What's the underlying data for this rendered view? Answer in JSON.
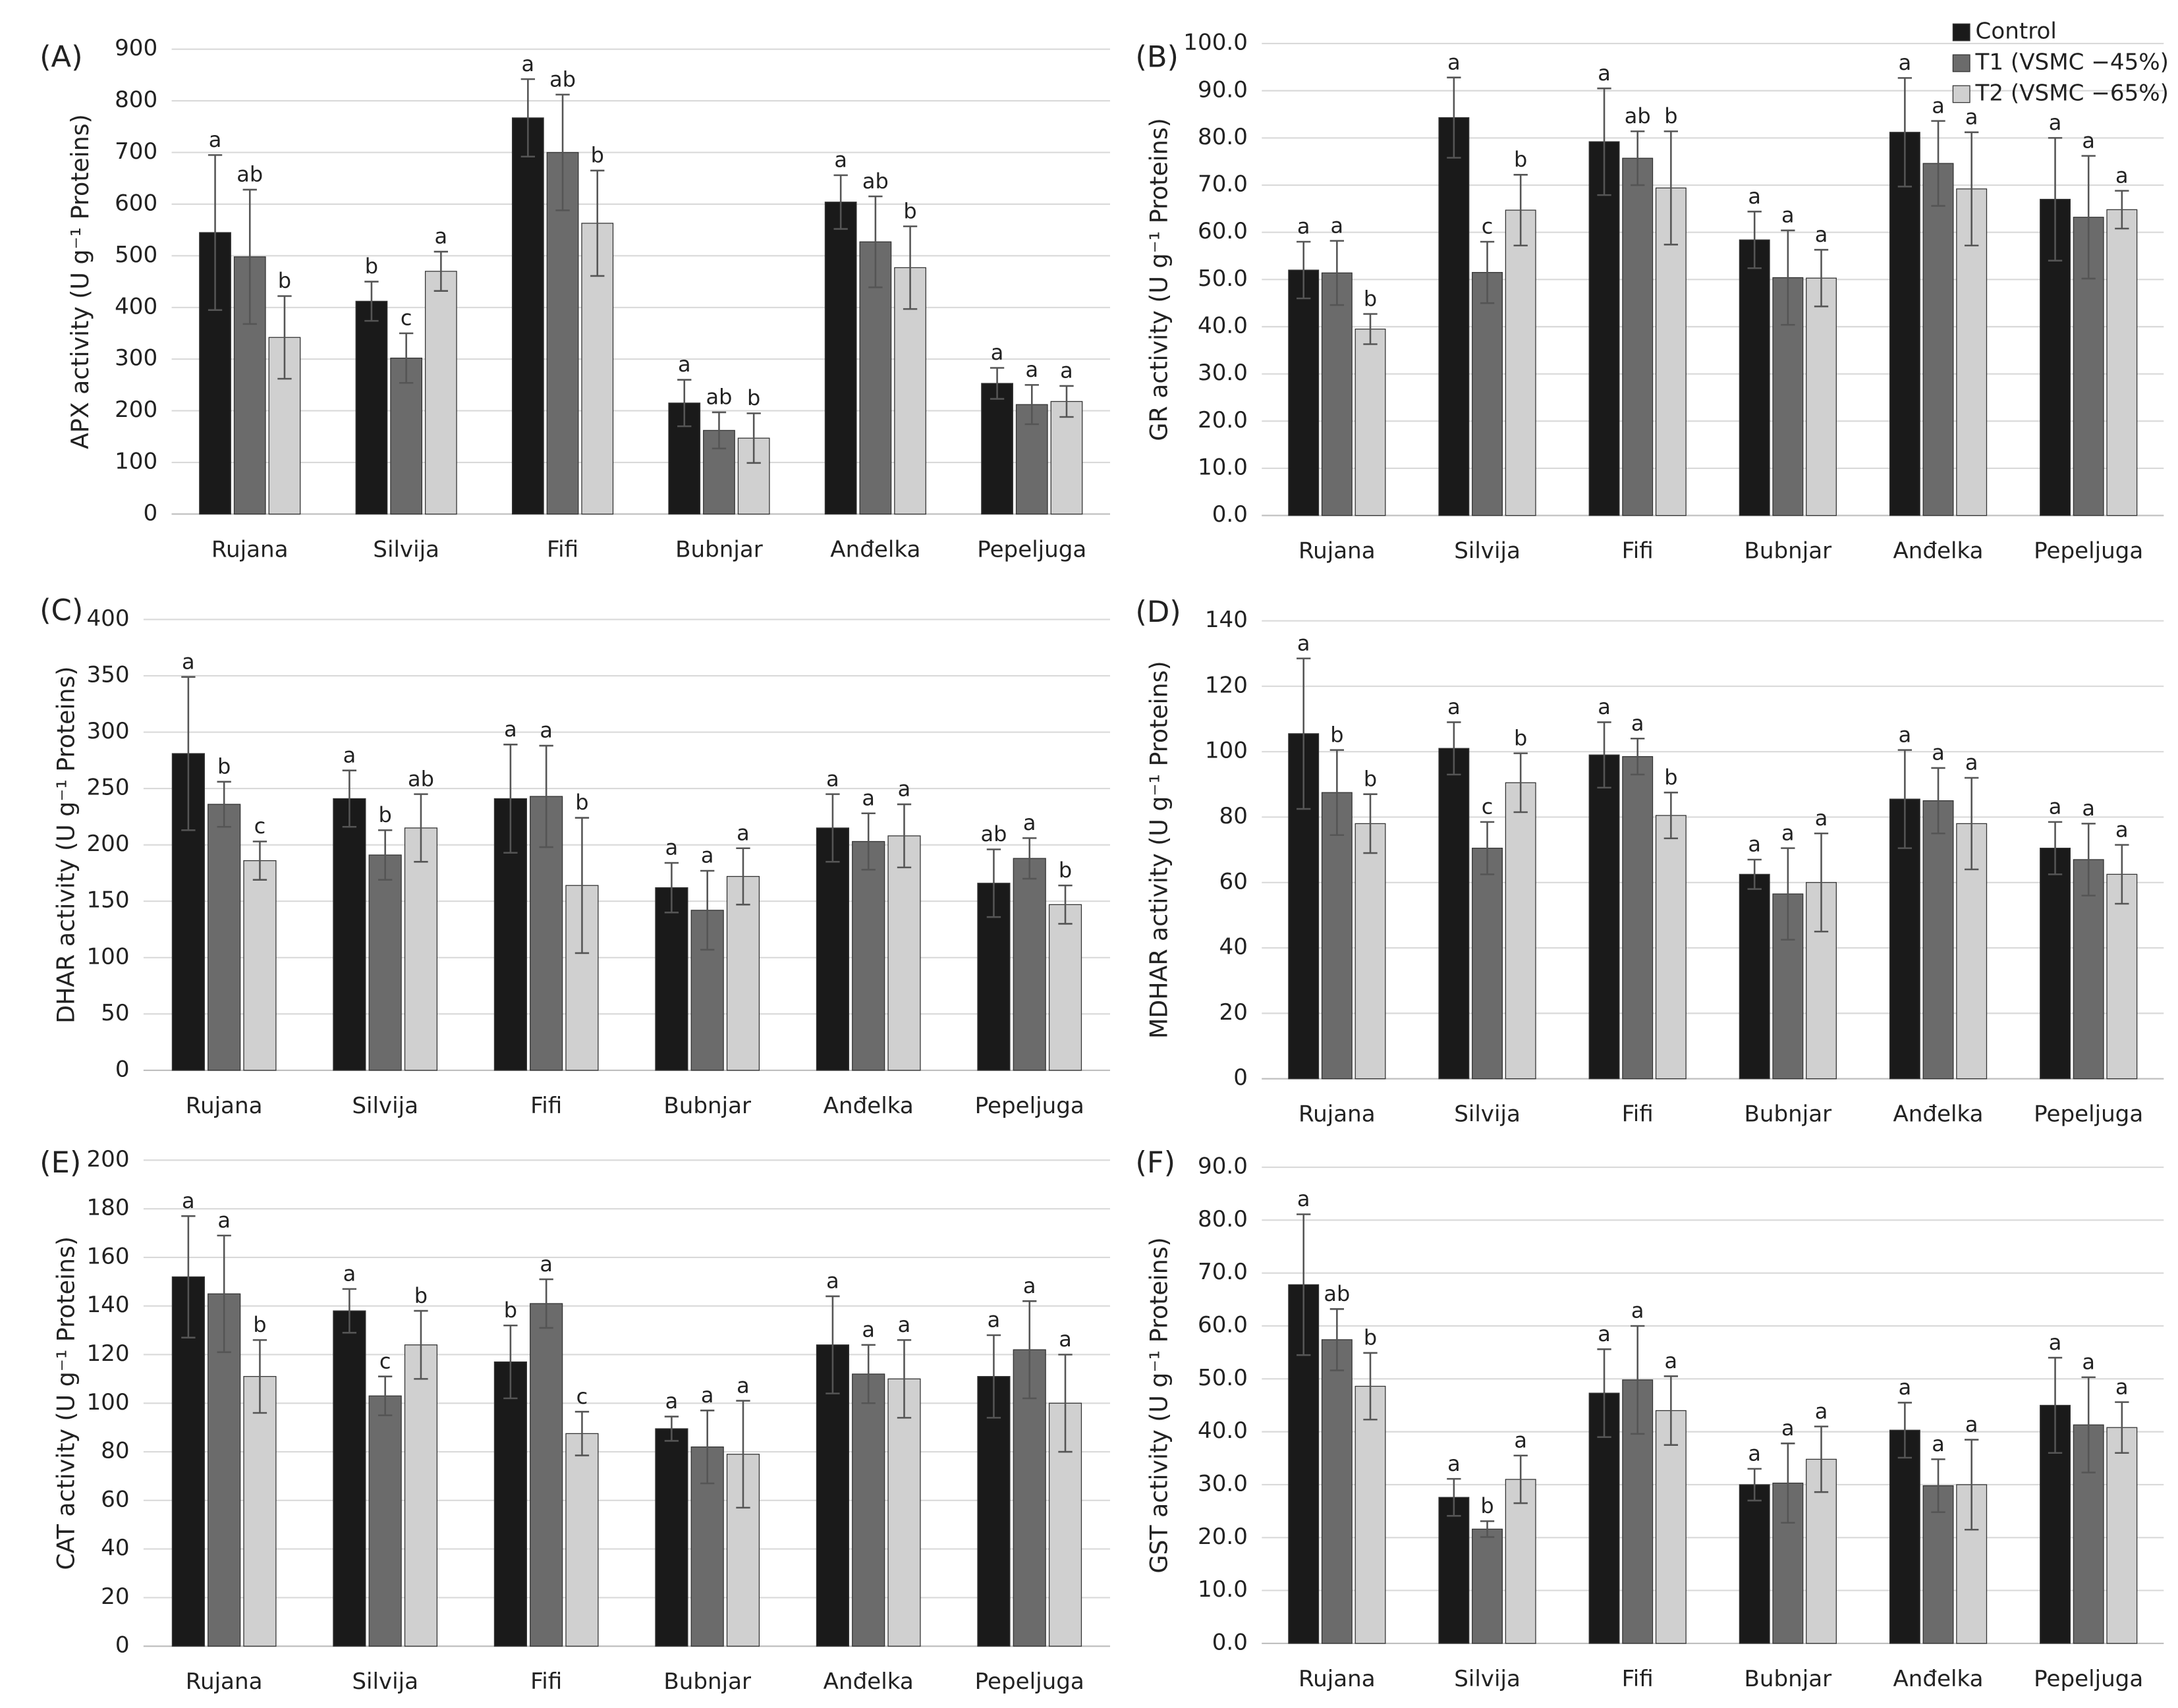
{
  "chart_data": [
    {
      "type": "bar",
      "label": "(A)",
      "ylabel": "APX activity (U g⁻¹ Proteins)",
      "categories": [
        "Rujana",
        "Silvija",
        "Fifi",
        "Bubnjar",
        "Anđelka",
        "Pepeljuga"
      ],
      "series": [
        {
          "color": "#1a1a1a",
          "values": [
            545,
            412,
            767,
            215,
            604,
            253
          ],
          "errors": [
            150,
            38,
            75,
            45,
            52,
            30
          ],
          "labels": [
            "a",
            "b",
            "a",
            "a",
            "a",
            "a"
          ]
        },
        {
          "color": "#6b6b6b",
          "values": [
            498,
            302,
            700,
            162,
            527,
            212
          ],
          "errors": [
            130,
            48,
            112,
            35,
            88,
            38
          ],
          "labels": [
            "ab",
            "c",
            "ab",
            "ab",
            "ab",
            "a"
          ]
        },
        {
          "color": "#d0d0d0",
          "values": [
            342,
            470,
            563,
            147,
            477,
            218
          ],
          "errors": [
            80,
            38,
            102,
            48,
            80,
            30
          ],
          "labels": [
            "b",
            "a",
            "b",
            "b",
            "b",
            "a"
          ]
        }
      ],
      "ylim": [
        0,
        900
      ],
      "yticks": [
        0,
        100,
        200,
        300,
        400,
        500,
        600,
        700,
        800,
        900
      ],
      "grid": true
    },
    {
      "type": "bar",
      "label": "(B)",
      "ylabel": "GR activity (U g⁻¹ Proteins)",
      "categories": [
        "Rujana",
        "Silvija",
        "Fifi",
        "Bubnjar",
        "Anđelka",
        "Pepeljuga"
      ],
      "series": [
        {
          "name": "Control",
          "color": "#1a1a1a",
          "values": [
            52,
            84.3,
            79.2,
            58.4,
            81.2,
            67
          ],
          "errors": [
            6,
            8.5,
            11.3,
            6,
            11.5,
            13
          ],
          "labels": [
            "a",
            "a",
            "a",
            "a",
            "a",
            "a"
          ]
        },
        {
          "name": "T1 (VSMC −45%)",
          "color": "#6b6b6b",
          "values": [
            51.4,
            51.5,
            75.7,
            50.4,
            74.6,
            63.2
          ],
          "errors": [
            6.8,
            6.5,
            5.7,
            10,
            9,
            13
          ],
          "labels": [
            "a",
            "c",
            "ab",
            "a",
            "a",
            "a"
          ]
        },
        {
          "name": "T2 (VSMC −65%)",
          "color": "#d0d0d0",
          "values": [
            39.5,
            64.7,
            69.4,
            50.3,
            69.2,
            64.8
          ],
          "errors": [
            3.2,
            7.5,
            12,
            6,
            12,
            4
          ],
          "labels": [
            "b",
            "b",
            "b",
            "a",
            "a",
            "a"
          ]
        }
      ],
      "ylim": [
        0,
        100
      ],
      "yticks": [
        {
          "value": 0,
          "label": "0.0"
        },
        {
          "value": 10,
          "label": "10.0"
        },
        {
          "value": 20,
          "label": "20.0"
        },
        {
          "value": 30,
          "label": "30.0"
        },
        {
          "value": 40,
          "label": "40.0"
        },
        {
          "value": 50,
          "label": "50.0"
        },
        {
          "value": 60,
          "label": "60.0"
        },
        {
          "value": 70,
          "label": "70.0"
        },
        {
          "value": 80,
          "label": "80.0"
        },
        {
          "value": 90,
          "label": "90.0"
        },
        {
          "value": 100,
          "label": "100.0"
        }
      ],
      "grid": true,
      "legend": "top-right"
    },
    {
      "type": "bar",
      "label": "(C)",
      "ylabel": "DHAR activity (U g⁻¹ Proteins)",
      "categories": [
        "Rujana",
        "Silvija",
        "Fifi",
        "Bubnjar",
        "Anđelka",
        "Pepeljuga"
      ],
      "series": [
        {
          "color": "#1a1a1a",
          "values": [
            281,
            241,
            241,
            162,
            215,
            166
          ],
          "errors": [
            68,
            25,
            48,
            22,
            30,
            30
          ],
          "labels": [
            "a",
            "a",
            "a",
            "a",
            "a",
            "ab"
          ]
        },
        {
          "color": "#6b6b6b",
          "values": [
            236,
            191,
            243,
            142,
            203,
            188
          ],
          "errors": [
            20,
            22,
            45,
            35,
            25,
            18
          ],
          "labels": [
            "b",
            "b",
            "a",
            "a",
            "a",
            "a"
          ]
        },
        {
          "color": "#d0d0d0",
          "values": [
            186,
            215,
            164,
            172,
            208,
            147
          ],
          "errors": [
            17,
            30,
            60,
            25,
            28,
            17
          ],
          "labels": [
            "c",
            "ab",
            "b",
            "a",
            "a",
            "b"
          ]
        }
      ],
      "ylim": [
        0,
        400
      ],
      "yticks": [
        0,
        50,
        100,
        150,
        200,
        250,
        300,
        350,
        400
      ],
      "grid": true
    },
    {
      "type": "bar",
      "label": "(D)",
      "ylabel": "MDHAR activity (U g⁻¹ Proteins)",
      "categories": [
        "Rujana",
        "Silvija",
        "Fifi",
        "Bubnjar",
        "Anđelka",
        "Pepeljuga"
      ],
      "series": [
        {
          "color": "#1a1a1a",
          "values": [
            105.5,
            101,
            99,
            62.5,
            85.5,
            70.5
          ],
          "errors": [
            23,
            8,
            10,
            4.5,
            15,
            8
          ],
          "labels": [
            "a",
            "a",
            "a",
            "a",
            "a",
            "a"
          ]
        },
        {
          "color": "#6b6b6b",
          "values": [
            87.5,
            70.5,
            98.5,
            56.5,
            85,
            67
          ],
          "errors": [
            13,
            8,
            5.5,
            14,
            10,
            11
          ],
          "labels": [
            "b",
            "c",
            "a",
            "a",
            "a",
            "a"
          ]
        },
        {
          "color": "#d0d0d0",
          "values": [
            78,
            90.5,
            80.5,
            60,
            78,
            62.5
          ],
          "errors": [
            9,
            9,
            7,
            15,
            14,
            9
          ],
          "labels": [
            "b",
            "b",
            "b",
            "a",
            "a",
            "a"
          ]
        }
      ],
      "ylim": [
        0,
        140
      ],
      "yticks": [
        0,
        20,
        40,
        60,
        80,
        100,
        120,
        140
      ],
      "grid": true
    },
    {
      "type": "bar",
      "label": "(E)",
      "ylabel": "CAT activity (U g⁻¹ Proteins)",
      "categories": [
        "Rujana",
        "Silvija",
        "Fifi",
        "Bubnjar",
        "Anđelka",
        "Pepeljuga"
      ],
      "series": [
        {
          "color": "#1a1a1a",
          "values": [
            152,
            138,
            117,
            89.5,
            124,
            111
          ],
          "errors": [
            25,
            9,
            15,
            5,
            20,
            17
          ],
          "labels": [
            "a",
            "a",
            "b",
            "a",
            "a",
            "a"
          ]
        },
        {
          "color": "#6b6b6b",
          "values": [
            145,
            103,
            141,
            82,
            112,
            122
          ],
          "errors": [
            24,
            8,
            10,
            15,
            12,
            20
          ],
          "labels": [
            "a",
            "c",
            "a",
            "a",
            "a",
            "a"
          ]
        },
        {
          "color": "#d0d0d0",
          "values": [
            111,
            124,
            87.5,
            79,
            110,
            100
          ],
          "errors": [
            15,
            14,
            9,
            22,
            16,
            20
          ],
          "labels": [
            "b",
            "b",
            "c",
            "a",
            "a",
            "a"
          ]
        }
      ],
      "ylim": [
        0,
        200
      ],
      "yticks": [
        0,
        20,
        40,
        60,
        80,
        100,
        120,
        140,
        160,
        180,
        200
      ],
      "grid": true
    },
    {
      "type": "bar",
      "label": "(F)",
      "ylabel": "GST activity (U g⁻¹ Proteins)",
      "categories": [
        "Rujana",
        "Silvija",
        "Fifi",
        "Bubnjar",
        "Anđelka",
        "Pepeljuga"
      ],
      "series": [
        {
          "color": "#1a1a1a",
          "values": [
            67.8,
            27.6,
            47.3,
            30,
            40.3,
            45
          ],
          "errors": [
            13.3,
            3.5,
            8.3,
            3,
            5.2,
            9
          ],
          "labels": [
            "a",
            "a",
            "a",
            "a",
            "a",
            "a"
          ]
        },
        {
          "color": "#6b6b6b",
          "values": [
            57.4,
            21.6,
            49.8,
            30.3,
            29.8,
            41.3
          ],
          "errors": [
            5.8,
            1.5,
            10.2,
            7.5,
            5,
            9
          ],
          "labels": [
            "ab",
            "b",
            "a",
            "a",
            "a",
            "a"
          ]
        },
        {
          "color": "#d0d0d0",
          "values": [
            48.6,
            31,
            44,
            34.8,
            30,
            40.8
          ],
          "errors": [
            6.3,
            4.5,
            6.5,
            6.2,
            8.5,
            4.8
          ],
          "labels": [
            "b",
            "a",
            "a",
            "a",
            "a",
            "a"
          ]
        }
      ],
      "ylim": [
        0,
        90
      ],
      "yticks": [
        {
          "value": 0,
          "label": "0.0"
        },
        {
          "value": 10,
          "label": "10.0"
        },
        {
          "value": 20,
          "label": "20.0"
        },
        {
          "value": 30,
          "label": "30.0"
        },
        {
          "value": 40,
          "label": "40.0"
        },
        {
          "value": 50,
          "label": "50.0"
        },
        {
          "value": 60,
          "label": "60.0"
        },
        {
          "value": 70,
          "label": "70.0"
        },
        {
          "value": 80,
          "label": "80.0"
        },
        {
          "value": 90,
          "label": "90.0"
        }
      ],
      "grid": true
    }
  ]
}
